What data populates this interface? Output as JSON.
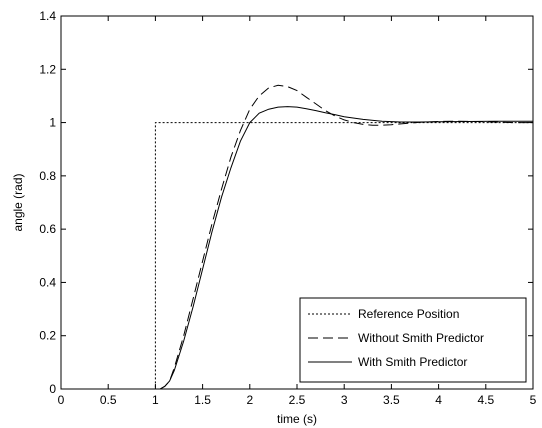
{
  "chart_data": {
    "type": "line",
    "title": "",
    "xlabel": "time (s)",
    "ylabel": "angle (rad)",
    "xlim": [
      0,
      5
    ],
    "ylim": [
      0,
      1.4
    ],
    "xticks": [
      0,
      0.5,
      1,
      1.5,
      2,
      2.5,
      3,
      3.5,
      4,
      4.5,
      5
    ],
    "xtick_labels": [
      "0",
      "0.5",
      "1",
      "1.5",
      "2",
      "2.5",
      "3",
      "3.5",
      "4",
      "4.5",
      "5"
    ],
    "yticks": [
      0,
      0.2,
      0.4,
      0.6,
      0.8,
      1,
      1.2,
      1.4
    ],
    "ytick_labels": [
      "0",
      "0.2",
      "0.4",
      "0.6",
      "0.8",
      "1",
      "1.2",
      "1.4"
    ],
    "grid": false,
    "legend_position": "bottom-right",
    "series": [
      {
        "name": "Reference Position",
        "style": "dotted",
        "color": "#000000",
        "x": [
          0,
          1,
          1,
          5
        ],
        "y": [
          0,
          0,
          1,
          1
        ]
      },
      {
        "name": "Without Smith Predictor",
        "style": "dashed",
        "color": "#000000",
        "x": [
          1.05,
          1.1,
          1.15,
          1.2,
          1.3,
          1.4,
          1.5,
          1.6,
          1.7,
          1.8,
          1.9,
          2.0,
          2.1,
          2.2,
          2.3,
          2.4,
          2.5,
          2.6,
          2.7,
          2.8,
          2.9,
          3.0,
          3.1,
          3.2,
          3.3,
          3.4,
          3.5,
          3.6,
          3.7,
          3.8,
          4.0,
          4.2,
          4.4,
          4.6,
          4.8,
          5.0
        ],
        "y": [
          0.0,
          0.01,
          0.03,
          0.08,
          0.2,
          0.34,
          0.48,
          0.62,
          0.75,
          0.87,
          0.97,
          1.05,
          1.1,
          1.13,
          1.14,
          1.135,
          1.12,
          1.095,
          1.07,
          1.045,
          1.025,
          1.01,
          1.0,
          0.993,
          0.99,
          0.99,
          0.992,
          0.995,
          0.998,
          1.001,
          1.004,
          1.005,
          1.004,
          1.002,
          1.0,
          1.0
        ]
      },
      {
        "name": "With Smith Predictor",
        "style": "solid",
        "color": "#000000",
        "x": [
          1.05,
          1.1,
          1.15,
          1.2,
          1.3,
          1.4,
          1.5,
          1.6,
          1.7,
          1.8,
          1.9,
          2.0,
          2.1,
          2.2,
          2.3,
          2.4,
          2.5,
          2.6,
          2.7,
          2.8,
          2.9,
          3.0,
          3.2,
          3.4,
          3.6,
          3.8,
          4.0,
          4.3,
          4.6,
          5.0
        ],
        "y": [
          0.0,
          0.01,
          0.03,
          0.07,
          0.18,
          0.31,
          0.45,
          0.59,
          0.72,
          0.83,
          0.93,
          1.0,
          1.035,
          1.05,
          1.058,
          1.06,
          1.058,
          1.052,
          1.045,
          1.037,
          1.03,
          1.022,
          1.012,
          1.005,
          1.002,
          1.002,
          1.003,
          1.004,
          1.005,
          1.005
        ]
      }
    ]
  }
}
